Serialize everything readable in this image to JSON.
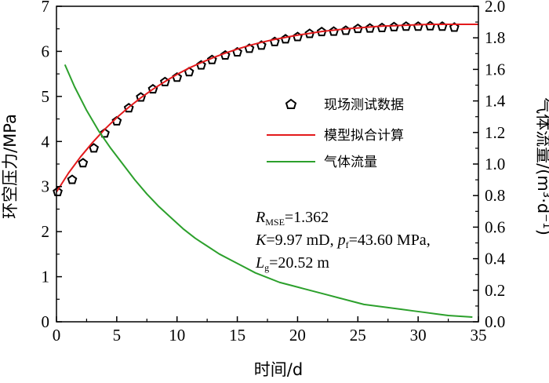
{
  "chart_data": {
    "type": "line",
    "xlabel": "时间/d",
    "ylabel": "环空压力/MPa",
    "y2label": "气体流量/(m³·d⁻¹)",
    "xlim": [
      0,
      35
    ],
    "ylim": [
      0,
      7
    ],
    "y2lim": [
      0,
      2.0
    ],
    "x_ticks": [
      "0",
      "5",
      "10",
      "15",
      "20",
      "25",
      "30",
      "35"
    ],
    "y_ticks": [
      "0",
      "1",
      "2",
      "3",
      "4",
      "5",
      "6",
      "7"
    ],
    "y2_ticks": [
      "0.0",
      "0.2",
      "0.4",
      "0.6",
      "0.8",
      "1.0",
      "1.2",
      "1.4",
      "1.6",
      "1.8",
      "2.0"
    ],
    "legend": {
      "position": "right-middle",
      "entries": [
        {
          "label": "现场测试数据",
          "marker": "open-pentagon",
          "color": "#000000"
        },
        {
          "label": "模型拟合计算",
          "marker": "line",
          "color": "#e31a1c"
        },
        {
          "label": "气体流量",
          "marker": "line",
          "color": "#2ca02c"
        }
      ]
    },
    "annotation": {
      "r_label": "R",
      "r_sub": "MSE",
      "r_value": "=1.362",
      "k_label": "K",
      "k_value": "=9.97 mD, ",
      "p_label": "p",
      "p_sub": "f",
      "p_value": "=43.60 MPa,",
      "l_label": "L",
      "l_sub": "g",
      "l_value": "=20.52 m"
    },
    "series": [
      {
        "name": "现场测试数据",
        "type": "scatter",
        "axis": "left",
        "color": "#000000",
        "x": [
          0.1,
          1.3,
          2.2,
          3.1,
          4.0,
          5.0,
          6.0,
          7.0,
          8.0,
          9.0,
          10.0,
          11.0,
          12.0,
          12.9,
          14.0,
          15.0,
          16.0,
          17.0,
          18.1,
          19.0,
          20.0,
          21.0,
          22.0,
          23.0,
          24.0,
          25.0,
          26.0,
          27.0,
          28.0,
          29.0,
          30.0,
          31.0,
          32.0,
          33.0
        ],
        "y": [
          2.88,
          3.15,
          3.52,
          3.85,
          4.18,
          4.45,
          4.74,
          4.98,
          5.16,
          5.32,
          5.42,
          5.54,
          5.69,
          5.81,
          5.91,
          5.98,
          6.06,
          6.13,
          6.21,
          6.27,
          6.32,
          6.39,
          6.43,
          6.44,
          6.46,
          6.5,
          6.51,
          6.52,
          6.54,
          6.55,
          6.55,
          6.56,
          6.55,
          6.53
        ]
      },
      {
        "name": "模型拟合计算",
        "type": "line",
        "axis": "left",
        "color": "#e31a1c",
        "x": [
          0,
          1,
          2,
          3,
          4,
          5,
          6,
          7,
          8,
          9,
          10,
          11,
          12,
          13,
          14,
          15,
          16,
          17,
          18,
          19,
          20,
          21,
          22,
          23,
          24,
          25,
          26,
          27,
          28,
          29,
          30,
          31,
          32,
          33,
          34,
          35
        ],
        "y": [
          2.88,
          3.3,
          3.66,
          3.98,
          4.27,
          4.53,
          4.76,
          4.97,
          5.16,
          5.33,
          5.49,
          5.63,
          5.75,
          5.86,
          5.96,
          6.05,
          6.13,
          6.2,
          6.26,
          6.31,
          6.36,
          6.4,
          6.44,
          6.47,
          6.5,
          6.52,
          6.54,
          6.56,
          6.57,
          6.58,
          6.59,
          6.6,
          6.6,
          6.6,
          6.6,
          6.6
        ]
      },
      {
        "name": "气体流量",
        "type": "line",
        "axis": "right",
        "color": "#2ca02c",
        "x": [
          0.7,
          1.5,
          2.5,
          3.5,
          4.5,
          5.5,
          6.5,
          7.5,
          8.5,
          9.5,
          10.5,
          11.5,
          12.5,
          13.5,
          14.5,
          15.5,
          16.5,
          17.5,
          18.5,
          19.5,
          20.5,
          21.5,
          22.5,
          23.5,
          24.5,
          25.5,
          26.5,
          27.5,
          28.5,
          29.5,
          30.5,
          31.5,
          32.5,
          33.5,
          34.5
        ],
        "y": [
          1.63,
          1.49,
          1.34,
          1.21,
          1.1,
          1.0,
          0.9,
          0.81,
          0.73,
          0.66,
          0.59,
          0.53,
          0.48,
          0.43,
          0.39,
          0.35,
          0.31,
          0.28,
          0.25,
          0.23,
          0.21,
          0.19,
          0.17,
          0.15,
          0.13,
          0.11,
          0.1,
          0.09,
          0.08,
          0.07,
          0.06,
          0.05,
          0.04,
          0.035,
          0.03
        ]
      }
    ]
  }
}
